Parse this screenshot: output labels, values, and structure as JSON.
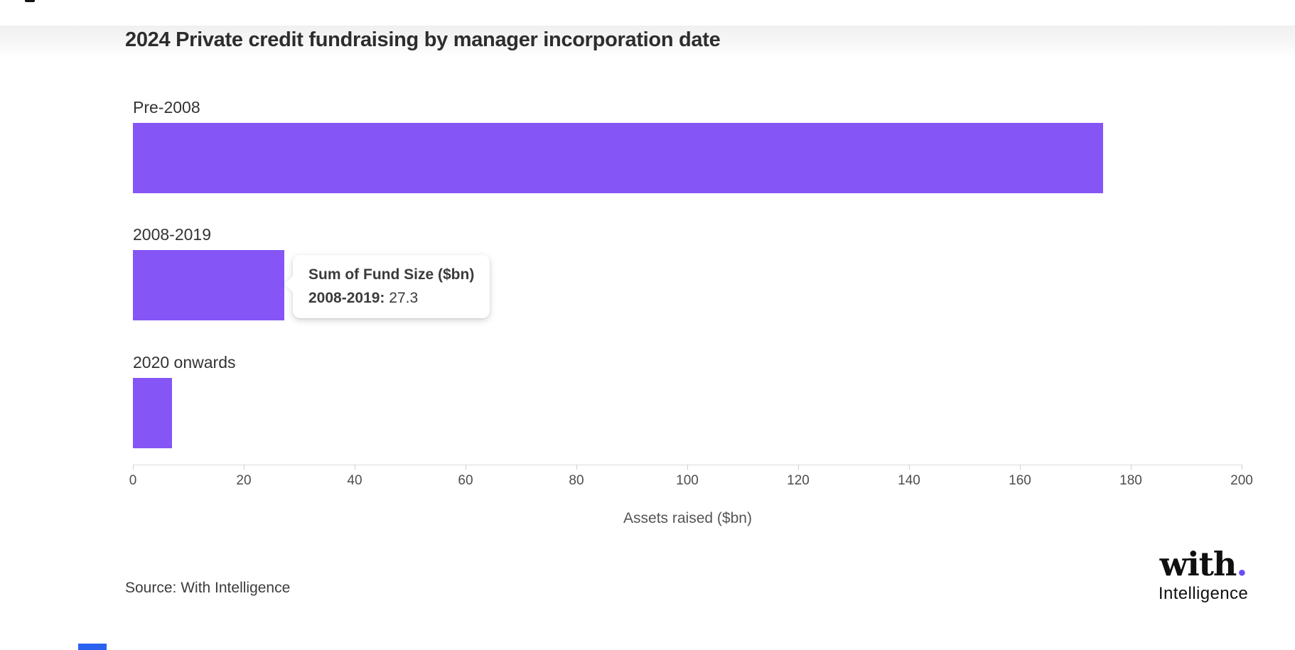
{
  "page": {
    "top_mark_color": "#121212",
    "bottom_accent_color": "#2962f0"
  },
  "header": {
    "title": "2024 Private credit fundraising by manager incorporation date"
  },
  "chart_data": {
    "type": "bar",
    "orientation": "horizontal",
    "title": "2024 Private credit fundraising by manager incorporation date",
    "categories": [
      "Pre-2008",
      "2008-2019",
      "2020 onwards"
    ],
    "values": [
      175,
      27.3,
      7
    ],
    "series_name": "Sum of Fund Size ($bn)",
    "xlabel": "Assets raised ($bn)",
    "xlim": [
      0,
      200
    ],
    "xticks": [
      0,
      20,
      40,
      60,
      80,
      100,
      120,
      140,
      160,
      180,
      200
    ],
    "bar_color": "#8655f6",
    "grid": false,
    "legend": false
  },
  "tooltip": {
    "series": "Sum of Fund Size ($bn)",
    "category_label": "2008-2019:",
    "value": "27.3"
  },
  "footer": {
    "source": "Source: With Intelligence",
    "logo_word": "with",
    "logo_dot": ".",
    "logo_sub": "Intelligence",
    "logo_dot_color": "#6c4cf6"
  }
}
